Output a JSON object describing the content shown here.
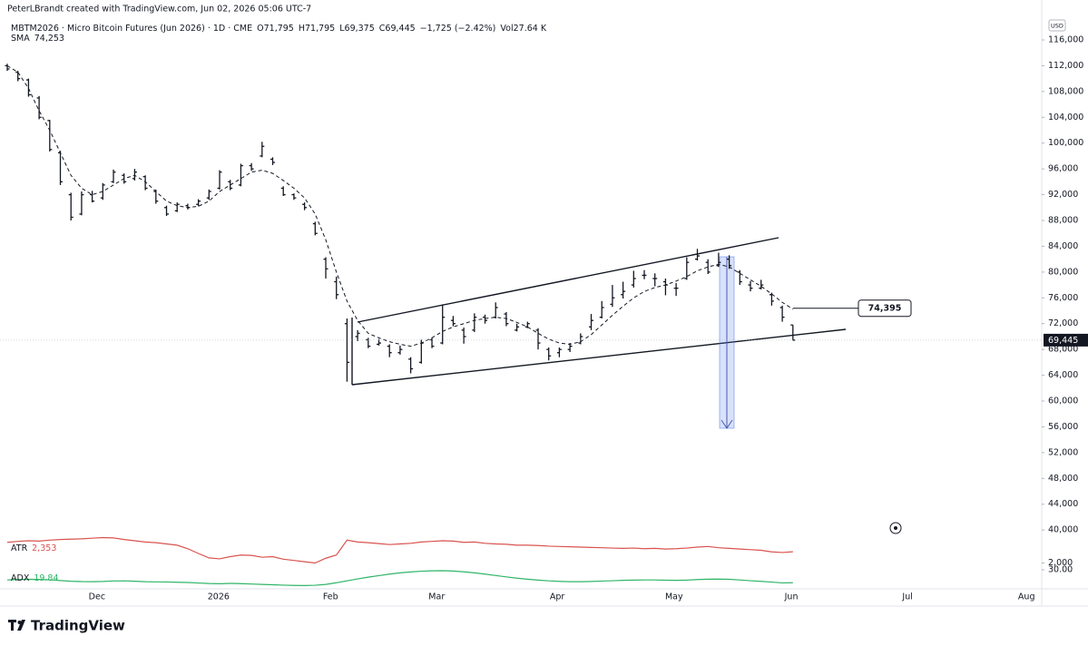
{
  "header": {
    "credit": "PeterLBrandt created with TradingView.com, Jun 02, 2026 05:06 UTC-7",
    "symbol": "MBTM2026 · Micro Bitcoin Futures (Jun 2026) · 1D · CME",
    "ohlc": [
      "O71,795",
      "H71,795",
      "L69,375",
      "C69,445",
      "−1,725 (−2.42%)",
      "Vol27.64 K"
    ]
  },
  "footer": {
    "logo": "TradingView"
  },
  "chart_data": [
    {
      "type": "ohlc",
      "currency": "USD",
      "color": "#131722",
      "grid": false,
      "xlim": [
        -1.37,
        194.87
      ],
      "xticks": [
        {
          "value": 16.9,
          "label": "Dec"
        },
        {
          "value": 39.8,
          "label": "2026"
        },
        {
          "value": 60.9,
          "label": "Feb"
        },
        {
          "value": 80.9,
          "label": "Mar"
        },
        {
          "value": 103.6,
          "label": "Apr"
        },
        {
          "value": 125.6,
          "label": "May"
        },
        {
          "value": 147.7,
          "label": "Jun"
        },
        {
          "value": 169.6,
          "label": "Jul"
        },
        {
          "value": 192.0,
          "label": "Aug"
        }
      ],
      "ylim": [
        39460,
        117970
      ],
      "yticks": [
        {
          "value": 116000,
          "label": "116,000"
        },
        {
          "value": 112000,
          "label": "112,000"
        },
        {
          "value": 108000,
          "label": "108,000"
        },
        {
          "value": 104000,
          "label": "104,000"
        },
        {
          "value": 100000,
          "label": "100,000"
        },
        {
          "value": 96000,
          "label": "96,000"
        },
        {
          "value": 92000,
          "label": "92,000"
        },
        {
          "value": 88000,
          "label": "88,000"
        },
        {
          "value": 84000,
          "label": "84,000"
        },
        {
          "value": 80000,
          "label": "80,000"
        },
        {
          "value": 76000,
          "label": "76,000"
        },
        {
          "value": 72000,
          "label": "72,000"
        },
        {
          "value": 68000,
          "label": "68,000"
        },
        {
          "value": 64000,
          "label": "64,000"
        },
        {
          "value": 60000,
          "label": "60,000"
        },
        {
          "value": 56000,
          "label": "56,000"
        },
        {
          "value": 52000,
          "label": "52,000"
        },
        {
          "value": 48000,
          "label": "48,000"
        },
        {
          "value": 44000,
          "label": "44,000"
        },
        {
          "value": 40000,
          "label": "40,000"
        }
      ],
      "x": [
        0,
        2,
        4,
        6,
        8,
        10,
        12,
        14,
        16,
        18,
        20,
        22,
        24,
        26,
        28,
        30,
        32,
        34,
        36,
        38,
        40,
        42,
        44,
        46,
        48,
        50,
        52,
        54,
        56,
        58,
        60,
        62,
        64,
        66,
        68,
        70,
        72,
        74,
        76,
        78,
        80,
        82,
        84,
        86,
        88,
        90,
        92,
        94,
        96,
        98,
        100,
        102,
        104,
        106,
        108,
        110,
        112,
        114,
        116,
        118,
        120,
        122,
        124,
        126,
        128,
        130,
        132,
        134,
        136,
        138,
        140,
        142,
        144,
        146,
        148
      ],
      "open": [
        112000,
        111000,
        109800,
        107000,
        103500,
        98500,
        92000,
        89000,
        92000,
        91500,
        94000,
        95000,
        94500,
        94800,
        92500,
        90000,
        89500,
        90300,
        90500,
        91500,
        93000,
        94000,
        93500,
        96500,
        98000,
        97500,
        93000,
        92000,
        90500,
        87500,
        82000,
        78500,
        72000,
        70000,
        69500,
        68800,
        68500,
        67500,
        66500,
        66000,
        69500,
        69000,
        72500,
        71000,
        71000,
        73000,
        73000,
        73500,
        71000,
        71500,
        71000,
        68000,
        67500,
        68000,
        69000,
        71500,
        73000,
        75000,
        76500,
        78000,
        79500,
        79000,
        78500,
        77500,
        79000,
        82000,
        81500,
        81000,
        82000,
        80000,
        78000,
        77500,
        76500,
        74500,
        71795
      ],
      "high": [
        112300,
        111200,
        110000,
        107300,
        103600,
        98800,
        92300,
        92500,
        92600,
        93800,
        95900,
        95300,
        96000,
        95000,
        92800,
        90300,
        90800,
        90600,
        91300,
        92800,
        95800,
        94300,
        96800,
        96900,
        100200,
        97800,
        93300,
        92200,
        90800,
        87800,
        82300,
        79300,
        72800,
        71000,
        69800,
        69600,
        68800,
        68600,
        66800,
        69500,
        69800,
        75000,
        73200,
        71400,
        73600,
        73400,
        75300,
        73800,
        72000,
        72300,
        71300,
        68300,
        68300,
        69000,
        70500,
        73500,
        75500,
        78000,
        78500,
        80200,
        80300,
        79800,
        79000,
        78300,
        82300,
        83600,
        82000,
        83000,
        82600,
        80300,
        78600,
        78800,
        76800,
        74800,
        71795
      ],
      "low": [
        111200,
        109600,
        107200,
        103700,
        98700,
        93500,
        88000,
        88800,
        90800,
        91200,
        93800,
        93700,
        94200,
        92700,
        90600,
        88700,
        89300,
        89700,
        90200,
        91200,
        92800,
        92700,
        93300,
        95700,
        97800,
        96600,
        91800,
        91200,
        89600,
        85700,
        79000,
        75800,
        63000,
        69300,
        68200,
        68600,
        66800,
        67200,
        64300,
        65800,
        68200,
        68800,
        71600,
        68900,
        70700,
        72000,
        72800,
        71600,
        70800,
        71300,
        68000,
        66300,
        66800,
        67600,
        68800,
        71000,
        72800,
        74600,
        75900,
        77600,
        78900,
        77800,
        76400,
        76300,
        78800,
        81800,
        79700,
        80800,
        80500,
        78000,
        77000,
        77300,
        74800,
        72300,
        69375
      ],
      "close": [
        111500,
        110000,
        107500,
        104000,
        99000,
        94000,
        88500,
        92000,
        91000,
        93500,
        95500,
        94000,
        95500,
        93000,
        91000,
        89000,
        90500,
        90000,
        91000,
        92500,
        95500,
        93000,
        96500,
        96000,
        99500,
        97000,
        92000,
        91500,
        90000,
        86000,
        80500,
        76500,
        66000,
        70500,
        68500,
        69000,
        67500,
        68000,
        65000,
        69000,
        68500,
        73000,
        72000,
        70000,
        73000,
        72500,
        74500,
        72000,
        71500,
        72000,
        69000,
        67000,
        68000,
        68500,
        70000,
        72500,
        74500,
        76000,
        77000,
        79000,
        79500,
        79000,
        78000,
        77500,
        81500,
        82500,
        80000,
        81500,
        81000,
        78500,
        77500,
        78000,
        75500,
        73000,
        69445
      ],
      "series": [
        {
          "name": "SMA",
          "color": "#131722",
          "value_label": "74,253",
          "values": [
            112000,
            111000,
            108500,
            105000,
            102000,
            98500,
            95000,
            93000,
            92000,
            92500,
            93500,
            94500,
            95000,
            94000,
            92500,
            91000,
            90300,
            90000,
            90200,
            91000,
            92500,
            93500,
            94500,
            95500,
            95800,
            95300,
            94200,
            93000,
            91500,
            89000,
            85000,
            80000,
            75500,
            72500,
            70500,
            69800,
            69200,
            68800,
            68500,
            69000,
            69800,
            70800,
            71500,
            72000,
            72500,
            72800,
            73000,
            72800,
            72200,
            71500,
            70500,
            69600,
            69000,
            68800,
            69200,
            70300,
            71800,
            73300,
            74700,
            76000,
            77000,
            77600,
            78000,
            78600,
            79300,
            80200,
            80800,
            81200,
            80800,
            79800,
            78800,
            77800,
            76600,
            75300,
            74253
          ]
        }
      ],
      "price_label": {
        "value": 69445,
        "label": "69,445"
      },
      "callout": {
        "value": 74395,
        "label": "74,395"
      }
    },
    {
      "type": "line",
      "ylim": [
        1900,
        2900
      ],
      "yticks": [
        {
          "value": 2000,
          "label": "2,000"
        }
      ],
      "series": [
        {
          "name": "ATR",
          "color": "#d9534f",
          "value_label": "2,353",
          "values": [
            2650,
            2680,
            2700,
            2690,
            2720,
            2740,
            2750,
            2760,
            2780,
            2800,
            2790,
            2740,
            2700,
            2660,
            2640,
            2600,
            2560,
            2450,
            2300,
            2160,
            2130,
            2200,
            2250,
            2240,
            2180,
            2200,
            2120,
            2080,
            2040,
            2000,
            2150,
            2250,
            2720,
            2660,
            2640,
            2610,
            2580,
            2600,
            2620,
            2660,
            2680,
            2700,
            2690,
            2650,
            2660,
            2620,
            2600,
            2590,
            2560,
            2560,
            2550,
            2530,
            2520,
            2510,
            2500,
            2490,
            2480,
            2470,
            2460,
            2470,
            2450,
            2460,
            2440,
            2450,
            2470,
            2500,
            2520,
            2480,
            2460,
            2440,
            2420,
            2400,
            2350,
            2330,
            2353
          ]
        }
      ]
    },
    {
      "type": "line",
      "ylim": [
        15,
        35
      ],
      "yticks": [
        {
          "value": 30,
          "label": "30.00"
        }
      ],
      "series": [
        {
          "name": "ADX",
          "color": "#2fb567",
          "value_label": "19.84",
          "values": [
            22,
            22.3,
            22.5,
            22.4,
            22.1,
            21.5,
            21,
            20.7,
            20.6,
            20.8,
            21.2,
            21.3,
            21,
            20.6,
            20.5,
            20.4,
            20.2,
            20,
            19.6,
            19.2,
            19,
            19.3,
            19.1,
            18.8,
            18.5,
            18.2,
            17.9,
            17.7,
            17.6,
            17.8,
            18.5,
            19.8,
            21.3,
            22.8,
            24.2,
            25.4,
            26.6,
            27.6,
            28.3,
            28.9,
            29.2,
            29.3,
            29,
            28.4,
            27.6,
            26.6,
            25.5,
            24.4,
            23.4,
            22.6,
            21.9,
            21.3,
            20.9,
            20.6,
            20.6,
            20.8,
            21.1,
            21.4,
            21.7,
            21.9,
            22,
            22,
            21.8,
            21.7,
            21.9,
            22.3,
            22.6,
            22.7,
            22.5,
            22,
            21.4,
            20.9,
            20.3,
            19.7,
            19.84
          ]
        }
      ]
    }
  ]
}
